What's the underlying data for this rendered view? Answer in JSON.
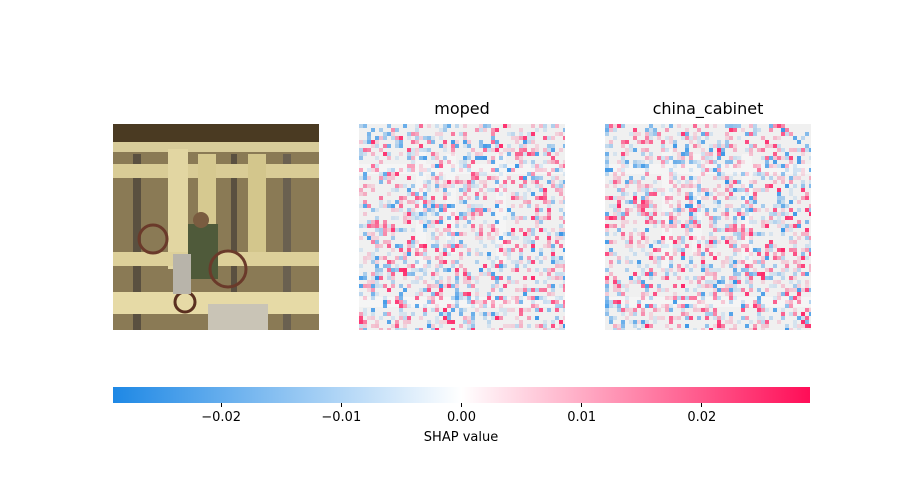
{
  "chart_data": {
    "type": "heatmap",
    "panels": [
      {
        "kind": "image",
        "title": ""
      },
      {
        "kind": "shap",
        "title": "moped"
      },
      {
        "kind": "shap",
        "title": "china_cabinet"
      }
    ],
    "colorbar": {
      "label": "SHAP value",
      "range": [
        -0.029,
        0.029
      ],
      "ticks": [
        -0.02,
        -0.01,
        0.0,
        0.01,
        0.02
      ],
      "tick_labels": [
        "−0.02",
        "−0.01",
        "0.00",
        "0.01",
        "0.02"
      ],
      "color_negative": "#1e88e5",
      "color_zero": "#ffffff",
      "color_positive": "#ff0d57"
    }
  }
}
